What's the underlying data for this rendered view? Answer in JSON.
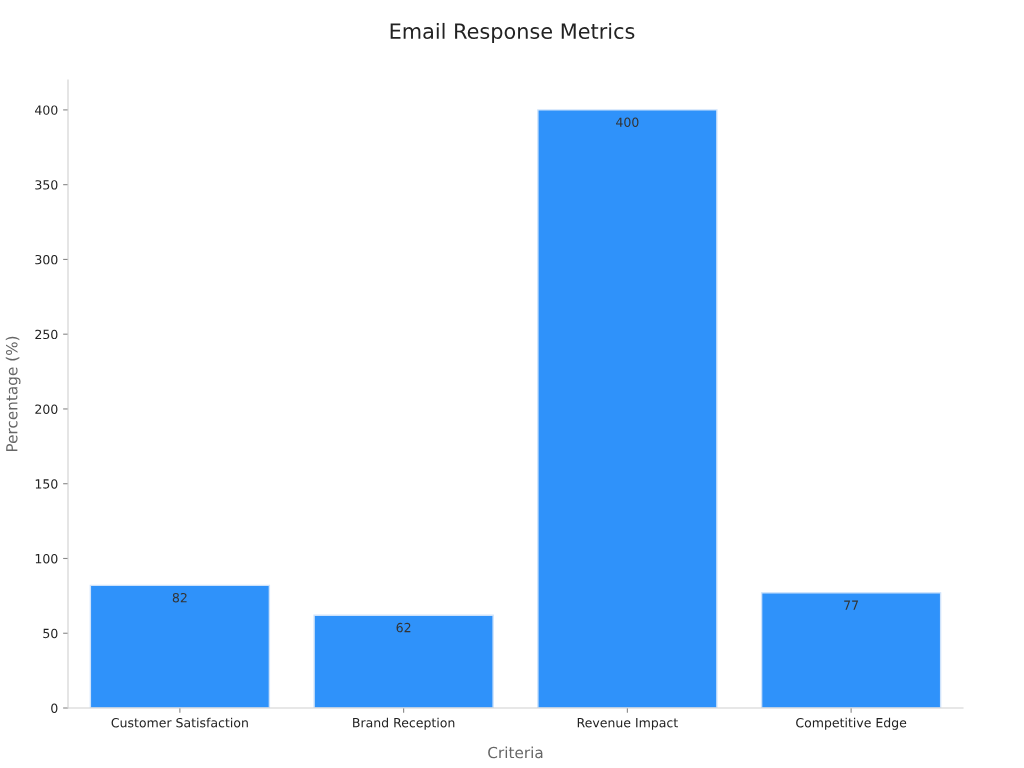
{
  "chart_data": {
    "type": "bar",
    "title": "Email Response Metrics",
    "xlabel": "Criteria",
    "ylabel": "Percentage (%)",
    "categories": [
      "Customer Satisfaction",
      "Brand Reception",
      "Revenue Impact",
      "Competitive Edge"
    ],
    "values": [
      82,
      62,
      400,
      77
    ],
    "color": "#2f92fa",
    "ylim": [
      0,
      420
    ],
    "yticks": [
      0,
      50,
      100,
      150,
      200,
      250,
      300,
      350,
      400
    ],
    "grid": false,
    "data_labels": true
  }
}
